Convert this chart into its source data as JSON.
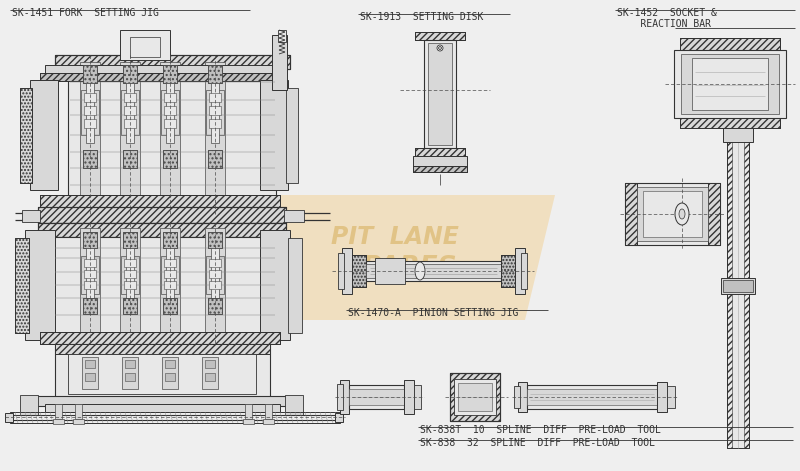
{
  "bg_color": "#efefef",
  "line_color": "#4a4a4a",
  "dark_line": "#333333",
  "fill_light": "#e8e8e8",
  "fill_mid": "#d8d8d8",
  "fill_dark": "#c0c0c0",
  "fill_hatch": "#b0b0b0",
  "watermark_orange": "#f0c070",
  "watermark_text": "#e8d8b0",
  "labels": {
    "fork_jig": "SK-1451 FORK  SETTING JIG",
    "setting_disk": "SK-1913  SETTING DISK",
    "socket_line1": "SK-1452  SOCKET &",
    "socket_line2": "    REACTION BAR",
    "pinion_jig": "SK-1470-A  PINION SETTING JIG",
    "preload1": "SK-838T  10  SPLINE  DIFF  PRE-LOAD  TOOL",
    "preload2": "SK-838  32  SPLINE  DIFF  PRE-LOAD  TOOL"
  },
  "font_size": 7,
  "lw": 0.6
}
